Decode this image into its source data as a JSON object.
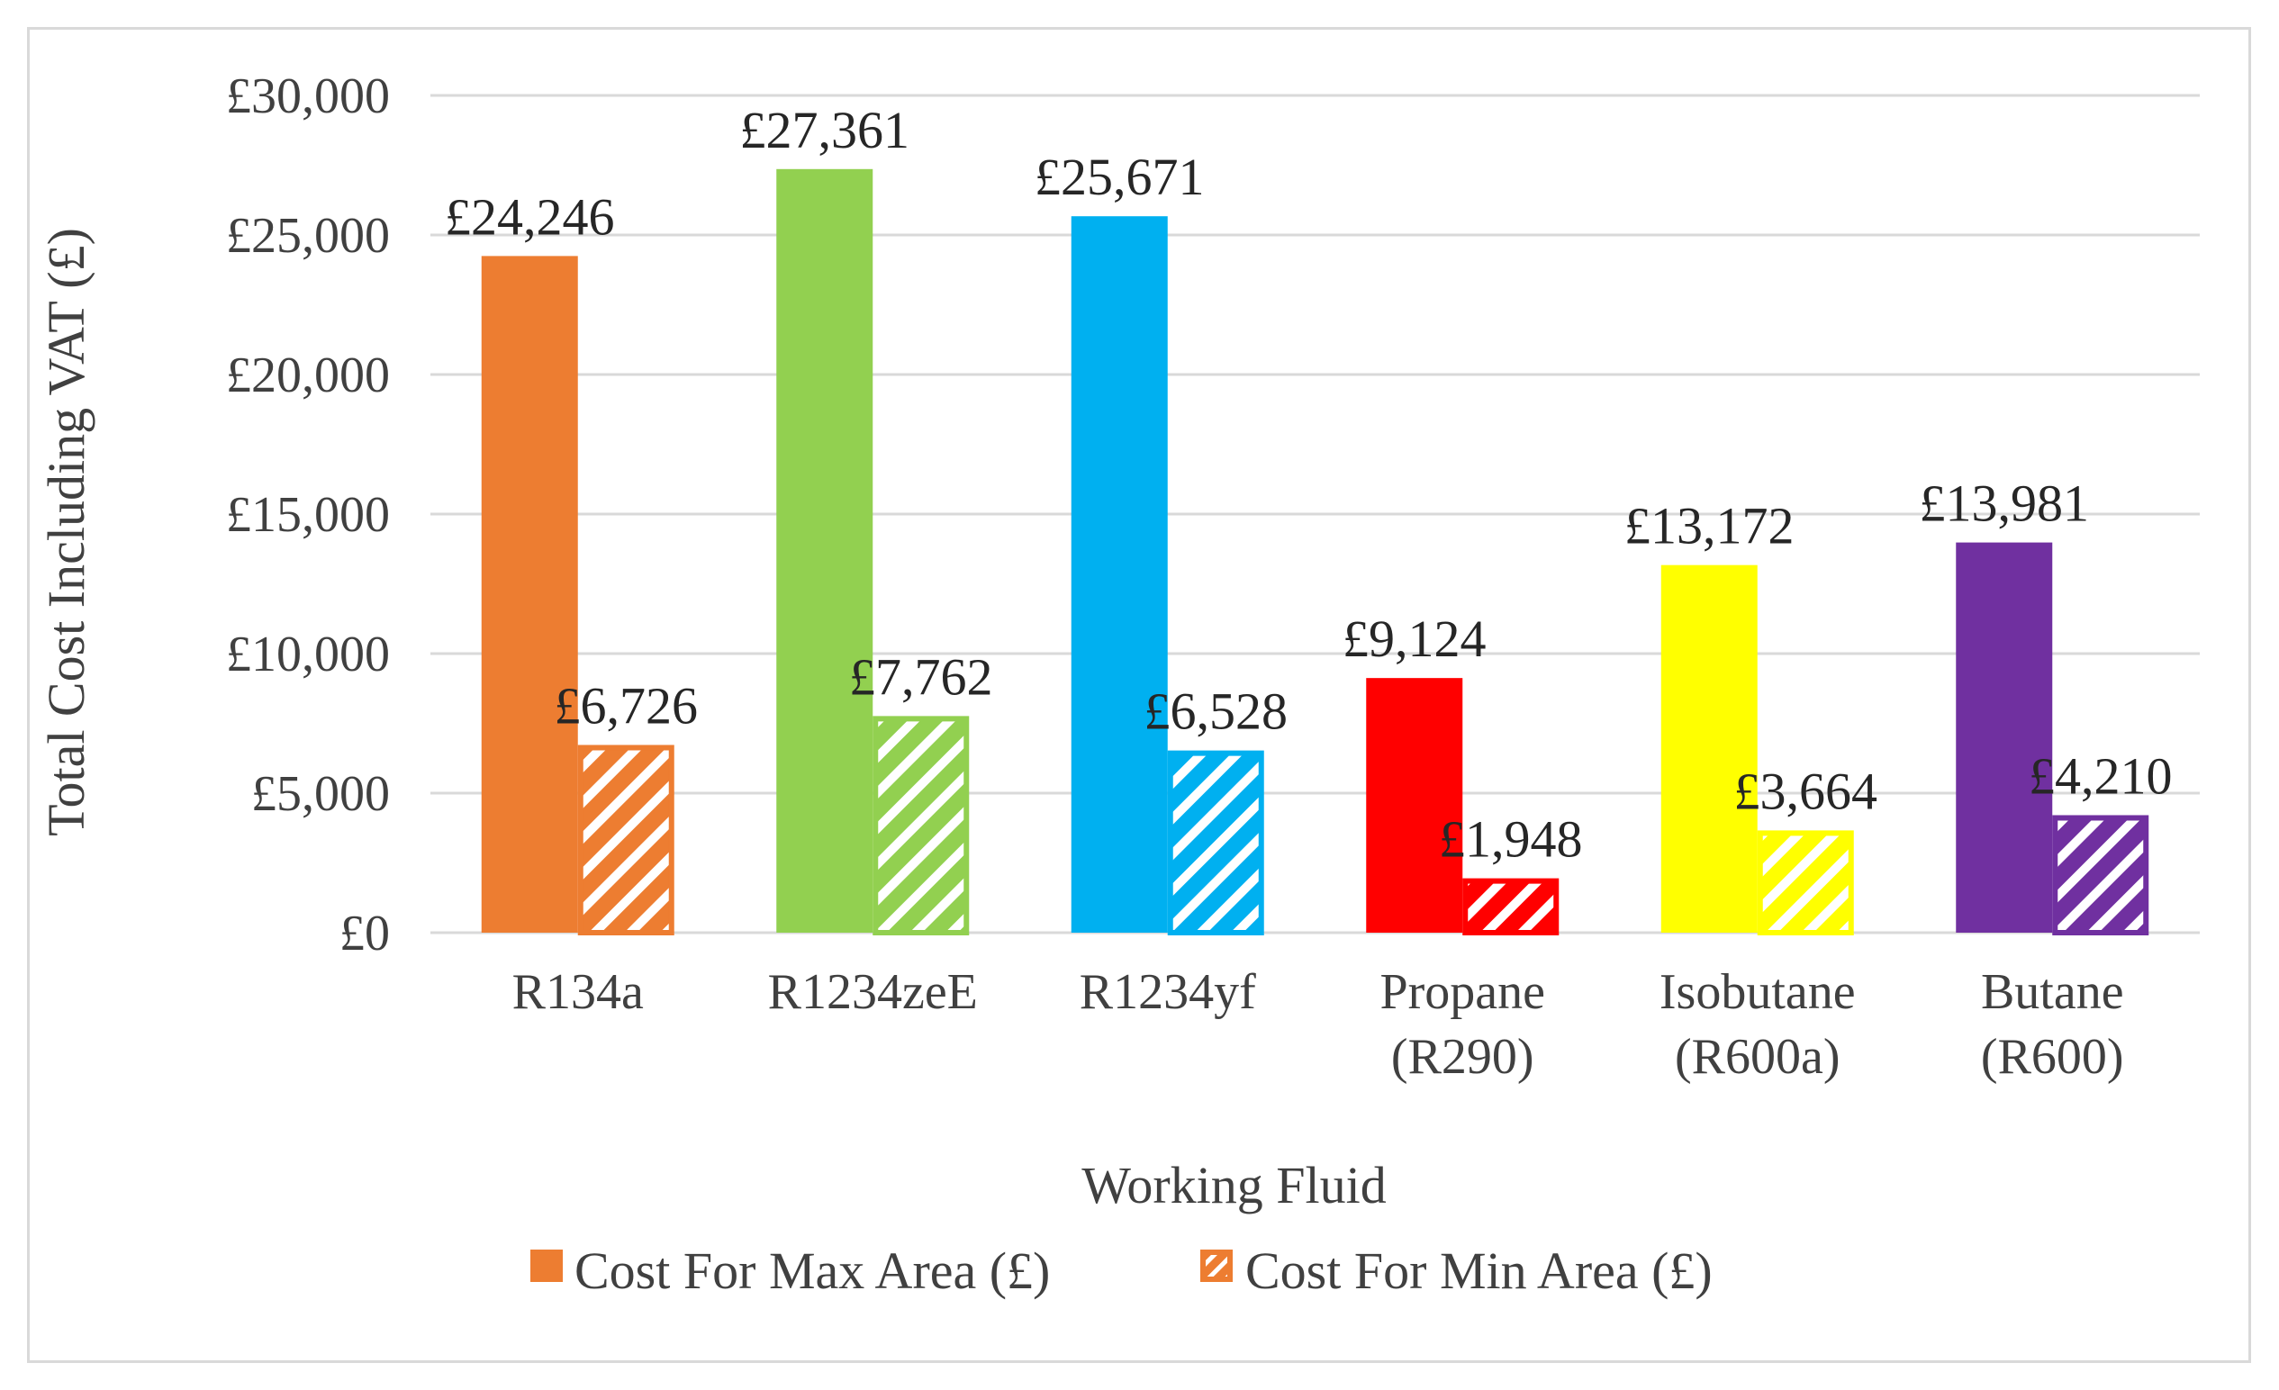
{
  "chart_data": {
    "type": "bar",
    "title": "",
    "xlabel": "Working Fluid",
    "ylabel": "Total Cost Including VAT (£)",
    "ylim": [
      0,
      30000
    ],
    "ytick_values": [
      0,
      5000,
      10000,
      15000,
      20000,
      25000,
      30000
    ],
    "ytick_labels": [
      "£0",
      "£5,000",
      "£10,000",
      "£15,000",
      "£20,000",
      "£25,000",
      "£30,000"
    ],
    "grid": true,
    "legend_position": "bottom",
    "categories": [
      [
        "R134a"
      ],
      [
        "R1234zeE"
      ],
      [
        "R1234yf"
      ],
      [
        "Propane",
        "(R290)"
      ],
      [
        "Isobutane",
        "(R600a)"
      ],
      [
        "Butane",
        "(R600)"
      ]
    ],
    "category_colors": [
      "#ED7D31",
      "#92D050",
      "#00B0F0",
      "#FF0000",
      "#FFFF00",
      "#7030A0"
    ],
    "series": [
      {
        "name": "Cost For Max Area (£)",
        "style": "solid",
        "values": [
          24246,
          27361,
          25671,
          9124,
          13172,
          13981
        ],
        "labels": [
          "£24,246",
          "£27,361",
          "£25,671",
          "£9,124",
          "£13,172",
          "£13,981"
        ]
      },
      {
        "name": "Cost For Min Area (£)",
        "style": "hatched",
        "values": [
          6726,
          7762,
          6528,
          1948,
          3664,
          4210
        ],
        "labels": [
          "£6,726",
          "£7,762",
          "£6,528",
          "£1,948",
          "£3,664",
          "£4,210"
        ]
      }
    ],
    "legend_color": "#ED7D31"
  }
}
